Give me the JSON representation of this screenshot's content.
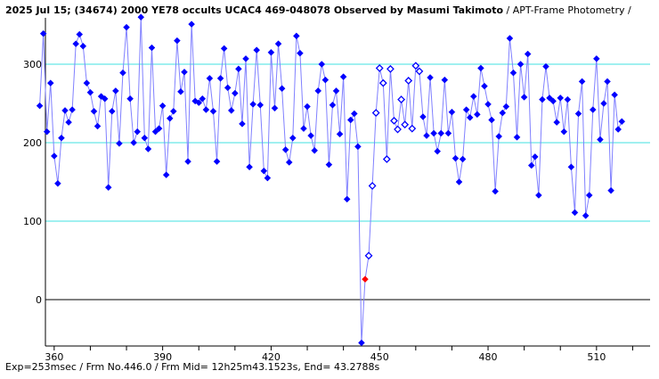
{
  "title": {
    "main": "2025 Jul 15; (34674) 2000 YE78 occults UCAC4 469-048078 Observed by Masumi Takimoto",
    "suffix": " / APT-Frame Photometry /"
  },
  "footer": "Exp=253msec / Frm No.446.0 / Frm Mid= 12h25m43.1523s,  End= 43.2788s",
  "chart_data": {
    "type": "line",
    "title": "2025 Jul 15; (34674) 2000 YE78 occults UCAC4 469-048078 Observed by Masumi Takimoto / APT-Frame Photometry /",
    "xlabel": "",
    "ylabel": "",
    "xlim": [
      356,
      524
    ],
    "ylim": [
      -56,
      365
    ],
    "x_ticks": [
      360,
      390,
      420,
      450,
      480,
      510
    ],
    "y_ticks": [
      0,
      100,
      200,
      300
    ],
    "grid": "horizontal",
    "x_start": 356,
    "x_step": 1,
    "values": [
      247,
      339,
      214,
      276,
      183,
      148,
      206,
      241,
      226,
      242,
      326,
      338,
      323,
      276,
      264,
      240,
      221,
      259,
      256,
      143,
      240,
      266,
      199,
      289,
      347,
      256,
      200,
      214,
      360,
      206,
      192,
      321,
      214,
      218,
      247,
      159,
      231,
      240,
      330,
      265,
      290,
      176,
      351,
      253,
      251,
      256,
      242,
      282,
      240,
      176,
      282,
      320,
      270,
      241,
      263,
      294,
      224,
      307,
      169,
      249,
      318,
      248,
      164,
      155,
      315,
      244,
      326,
      269,
      191,
      175,
      206,
      336,
      314,
      218,
      246,
      209,
      190,
      266,
      300,
      280,
      172,
      248,
      266,
      211,
      284,
      128,
      229,
      237,
      195,
      -55,
      26,
      56,
      145,
      238,
      295,
      276,
      179,
      294,
      228,
      217,
      255,
      223,
      279,
      218,
      298,
      291,
      233,
      209,
      283,
      212,
      189,
      212,
      280,
      212,
      239,
      180,
      150,
      179,
      242,
      232,
      259,
      236,
      295,
      272,
      249,
      229,
      138,
      208,
      238,
      246,
      333,
      289,
      207,
      300,
      258,
      313,
      171,
      182,
      133,
      255,
      297,
      257,
      253,
      226,
      257,
      214,
      255,
      169,
      111,
      237,
      278,
      107,
      133,
      242,
      307,
      204,
      250,
      278,
      139,
      261,
      217,
      227
    ],
    "highlight_frame": 446,
    "hollow_frames": [
      447,
      461
    ],
    "colors": {
      "points": "#0000ff",
      "line": "#8080ff",
      "highlight": "#ff0000",
      "grid": "#40e0e0",
      "zero_line": "#000000"
    }
  }
}
